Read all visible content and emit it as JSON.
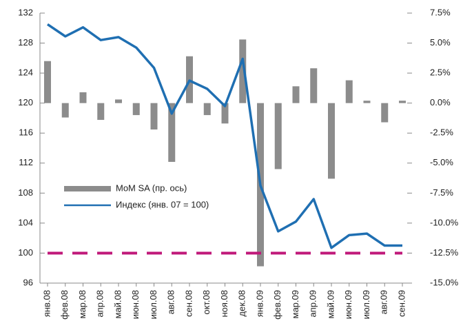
{
  "chart_data": {
    "type": "bar_line",
    "categories": [
      "янв.08",
      "фев.08",
      "мар.08",
      "апр.08",
      "май.08",
      "июн.08",
      "июл.08",
      "авг.08",
      "сен.08",
      "окт.08",
      "ноя.08",
      "дек.08",
      "янв.09",
      "фев.09",
      "мар.09",
      "апр.09",
      "май.09",
      "июн.09",
      "июл.09",
      "авг.09",
      "сен.09"
    ],
    "series": [
      {
        "name": "MoM SA (пр. ось)",
        "type": "bar",
        "axis": "y2",
        "color": "#8c8c8c",
        "values": [
          3.5,
          -1.2,
          0.9,
          -1.4,
          0.3,
          -1.0,
          -2.2,
          -4.9,
          3.9,
          -1.0,
          -1.7,
          5.3,
          -13.6,
          -5.5,
          1.4,
          2.9,
          -6.3,
          1.9,
          0.2,
          -1.6,
          0.2
        ]
      },
      {
        "name": "Индекс (янв. 07 = 100)",
        "type": "line",
        "axis": "y",
        "color": "#1f6fb2",
        "values": [
          130.5,
          128.9,
          130.1,
          128.4,
          128.8,
          127.4,
          124.7,
          118.6,
          123.0,
          121.9,
          119.6,
          125.9,
          109.0,
          102.9,
          104.2,
          107.2,
          100.7,
          102.4,
          102.6,
          101.0,
          101.0
        ]
      }
    ],
    "reference_line": {
      "value": 100,
      "color": "#c0197a"
    },
    "ylim": [
      96,
      132
    ],
    "yticks": [
      96,
      100,
      104,
      108,
      112,
      116,
      120,
      124,
      128,
      132
    ],
    "y2lim": [
      -15,
      7.5
    ],
    "y2ticks": [
      {
        "value": -15,
        "label": "-15.0%"
      },
      {
        "value": -12.5,
        "label": "-12.5%"
      },
      {
        "value": -10,
        "label": "-10.0%"
      },
      {
        "value": -7.5,
        "label": "-7.5%"
      },
      {
        "value": -5,
        "label": "-5.0%"
      },
      {
        "value": -2.5,
        "label": "-2.5%"
      },
      {
        "value": 0,
        "label": "0.0%"
      },
      {
        "value": 2.5,
        "label": "2.5%"
      },
      {
        "value": 5,
        "label": "5.0%"
      },
      {
        "value": 7.5,
        "label": "7.5%"
      }
    ]
  }
}
